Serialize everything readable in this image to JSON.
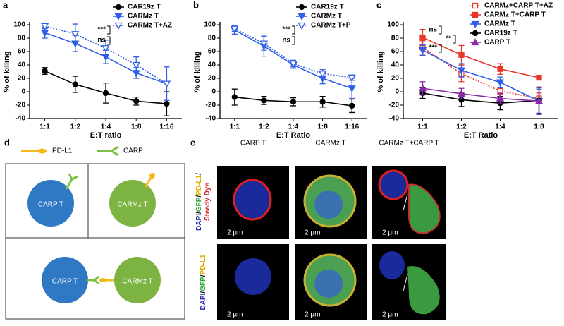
{
  "chart_data": [
    {
      "type": "line",
      "panel": "a",
      "x_label": "E:T ratio",
      "y_label": "% of killing",
      "categories": [
        "1:1",
        "1:2",
        "1:4",
        "1:8",
        "1:16"
      ],
      "ylim": [
        -40,
        100
      ],
      "yticks": [
        -40,
        -20,
        0,
        20,
        40,
        60,
        80,
        100
      ],
      "annotations": [
        "***",
        "ns"
      ],
      "series": [
        {
          "name": "CAR19z T",
          "color": "#000000",
          "marker": "circle",
          "filled": true,
          "dashed": false,
          "values": [
            31,
            11,
            -2,
            -14,
            -18
          ],
          "errors": [
            5,
            12,
            15,
            6,
            18
          ]
        },
        {
          "name": "CARMz T",
          "color": "#2f5fe8",
          "marker": "tri-down",
          "filled": true,
          "dashed": false,
          "values": [
            88,
            72,
            52,
            28,
            12
          ],
          "errors": [
            8,
            12,
            10,
            8,
            25
          ]
        },
        {
          "name": "CARMz T+AZ",
          "color": "#2f5fe8",
          "marker": "tri-down",
          "filled": false,
          "dashed": true,
          "values": [
            98,
            86,
            65,
            40,
            12
          ],
          "errors": [
            4,
            15,
            12,
            12,
            25
          ]
        }
      ]
    },
    {
      "type": "line",
      "panel": "b",
      "x_label": "E:T Ratio",
      "y_label": "% of killing",
      "categories": [
        "1:1",
        "1:2",
        "1:4",
        "1:8",
        "1:16"
      ],
      "ylim": [
        -40,
        100
      ],
      "yticks": [
        -40,
        -20,
        0,
        20,
        40,
        60,
        80,
        100
      ],
      "annotations": [
        "***",
        "ns"
      ],
      "series": [
        {
          "name": "CAR19z T",
          "color": "#000000",
          "marker": "circle",
          "filled": true,
          "dashed": false,
          "values": [
            -8,
            -13,
            -15,
            -15,
            -21
          ],
          "errors": [
            12,
            6,
            6,
            8,
            10
          ]
        },
        {
          "name": "CARMz T",
          "color": "#2f5fe8",
          "marker": "tri-down",
          "filled": true,
          "dashed": false,
          "values": [
            92,
            68,
            40,
            20,
            5
          ],
          "errors": [
            6,
            15,
            5,
            8,
            15
          ]
        },
        {
          "name": "CARMz T+P",
          "color": "#2f5fe8",
          "marker": "tri-down",
          "filled": false,
          "dashed": true,
          "values": [
            94,
            72,
            42,
            27,
            21
          ],
          "errors": [
            4,
            10,
            5,
            6,
            4
          ]
        }
      ]
    },
    {
      "type": "line",
      "panel": "c",
      "x_label": "E:T Ratio",
      "y_label": "% of killing",
      "categories": [
        "1:1",
        "1:2",
        "1:4",
        "1:8"
      ],
      "ylim": [
        -40,
        100
      ],
      "yticks": [
        -40,
        -20,
        0,
        20,
        40,
        60,
        80,
        100
      ],
      "annotations": [
        "ns",
        "**",
        "***"
      ],
      "series": [
        {
          "name": "CARMz+CARP T+AZ",
          "color": "#e8382a",
          "marker": "square",
          "filled": false,
          "dashed": true,
          "values": [
            66,
            27,
            1,
            -10
          ],
          "errors": [
            10,
            12,
            5,
            8
          ]
        },
        {
          "name": "CARMz T+CARP T",
          "color": "#e8382a",
          "marker": "square",
          "filled": true,
          "dashed": false,
          "values": [
            81,
            55,
            34,
            21
          ],
          "errors": [
            12,
            14,
            8,
            3
          ]
        },
        {
          "name": "CARMz T",
          "color": "#2f5fe8",
          "marker": "tri-down",
          "filled": true,
          "dashed": false,
          "values": [
            62,
            32,
            14,
            -14
          ],
          "errors": [
            8,
            10,
            8,
            18
          ]
        },
        {
          "name": "CAR19z T",
          "color": "#000000",
          "marker": "circle",
          "filled": true,
          "dashed": false,
          "values": [
            -2,
            -12,
            -17,
            -13
          ],
          "errors": [
            8,
            10,
            10,
            20
          ]
        },
        {
          "name": "CARP  T",
          "color": "#8b2aa8",
          "marker": "tri-up",
          "filled": true,
          "dashed": false,
          "values": [
            5,
            -3,
            -10,
            -14
          ],
          "errors": [
            10,
            8,
            8,
            20
          ]
        }
      ]
    }
  ],
  "panel_d": {
    "panel": "d",
    "legend": [
      "PD-L1",
      "CARP"
    ],
    "cells": [
      "CARP T",
      "CARMz T",
      "CARP T",
      "CARMz T"
    ]
  },
  "panel_e": {
    "panel": "e",
    "columns": [
      "CARP T",
      "CARMz T",
      "CARMz T+CARP T"
    ],
    "scale_bars": [
      "2 μm",
      "2 μm",
      "2 μm",
      "2 μm",
      "2 μm",
      "2 μm"
    ],
    "row_labels": [
      {
        "lines": [
          [
            {
              "text": "DAPI",
              "color": "#2a2ab8"
            },
            {
              "text": "/",
              "color": "#000000"
            },
            {
              "text": "GFP",
              "color": "#2aa83a"
            },
            {
              "text": "/",
              "color": "#000000"
            },
            {
              "text": "PD-L1",
              "color": "#e0b000"
            },
            {
              "text": "/",
              "color": "#000000"
            }
          ],
          [
            {
              "text": "Steady Dye",
              "color": "#d02020"
            }
          ]
        ]
      },
      {
        "lines": [
          [
            {
              "text": "DAPI",
              "color": "#2a2ab8"
            },
            {
              "text": "/",
              "color": "#000000"
            },
            {
              "text": "GFP",
              "color": "#2aa83a"
            },
            {
              "text": "/",
              "color": "#000000"
            },
            {
              "text": "PD-L1",
              "color": "#e0b000"
            }
          ]
        ]
      }
    ]
  }
}
